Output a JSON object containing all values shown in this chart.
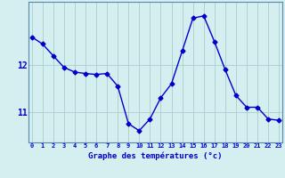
{
  "x": [
    0,
    1,
    2,
    3,
    4,
    5,
    6,
    7,
    8,
    9,
    10,
    11,
    12,
    13,
    14,
    15,
    16,
    17,
    18,
    19,
    20,
    21,
    22,
    23
  ],
  "y": [
    12.6,
    12.45,
    12.2,
    11.95,
    11.85,
    11.82,
    11.8,
    11.82,
    11.55,
    10.75,
    10.6,
    10.85,
    11.3,
    11.6,
    12.3,
    13.0,
    13.05,
    12.5,
    11.9,
    11.35,
    11.1,
    11.1,
    10.85,
    10.82
  ],
  "line_color": "#0000cc",
  "bg_color": "#d5eef0",
  "grid_color": "#a8cece",
  "xlabel": "Graphe des températures (°c)",
  "ylim": [
    10.35,
    13.35
  ],
  "yticks": [
    11,
    12
  ],
  "ytick_labels": [
    "11",
    "12"
  ],
  "xticks": [
    0,
    1,
    2,
    3,
    4,
    5,
    6,
    7,
    8,
    9,
    10,
    11,
    12,
    13,
    14,
    15,
    16,
    17,
    18,
    19,
    20,
    21,
    22,
    23
  ],
  "tick_color": "#0000cc",
  "marker_size": 2.5,
  "line_width": 1.0,
  "xlim_left": -0.3,
  "xlim_right": 23.3
}
